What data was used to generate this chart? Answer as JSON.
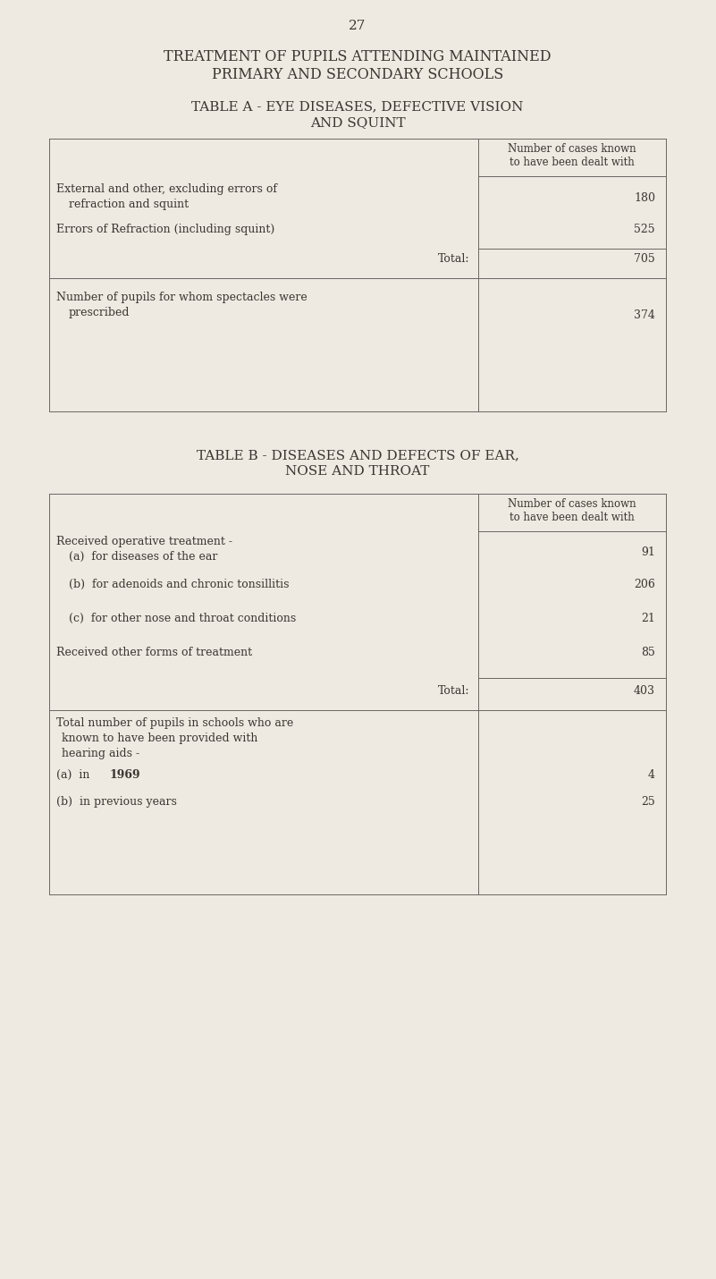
{
  "page_number": "27",
  "main_title_line1": "TREATMENT OF PUPILS ATTENDING MAINTAINED",
  "main_title_line2": "PRIMARY AND SECONDARY SCHOOLS",
  "table_a_title_line1": "TABLE A - EYE DISEASES, DEFECTIVE VISION",
  "table_a_title_line2": "AND SQUINT",
  "table_a_col_header_line1": "Number of cases known",
  "table_a_col_header_line2": "to have been dealt with",
  "table_b_title_line1": "TABLE B - DISEASES AND DEFECTS OF EAR,",
  "table_b_title_line2": "NOSE AND THROAT",
  "table_b_col_header_line1": "Number of cases known",
  "table_b_col_header_line2": "to have been dealt with",
  "bg_color": "#eeeae2",
  "text_color": "#3a3630",
  "line_color": "#6a6560",
  "font_family": "DejaVu Serif"
}
